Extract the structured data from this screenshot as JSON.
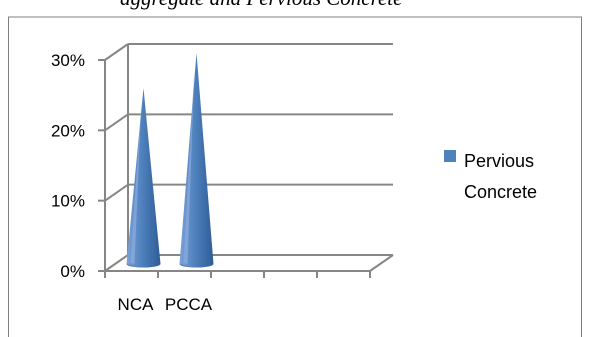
{
  "caption": "aggregate and Pervious Concrete",
  "chart_data": {
    "type": "bar",
    "style": "3d-cone",
    "categories": [
      "NCA",
      "PCCA"
    ],
    "series": [
      {
        "name": "Pervious Concrete",
        "values": [
          25,
          30
        ],
        "color": "#4f81bd"
      }
    ],
    "yticks": [
      "0%",
      "10%",
      "20%",
      "30%"
    ],
    "ylim": [
      0,
      30
    ],
    "grid": true,
    "legend": "right",
    "title": "",
    "xlabel": "",
    "ylabel": ""
  }
}
